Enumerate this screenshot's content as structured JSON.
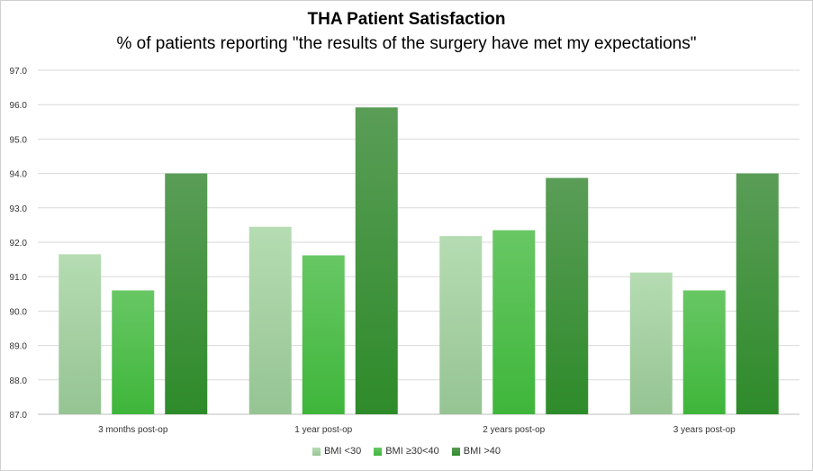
{
  "chart_data": {
    "type": "bar",
    "title": "THA Patient Satisfaction",
    "subtitle": "% of patients reporting \"the results of the surgery have met my expectations\"",
    "categories": [
      "3 months post-op",
      "1 year post-op",
      "2 years post-op",
      "3 years post-op"
    ],
    "series": [
      {
        "name": "BMI <30",
        "values": [
          91.65,
          92.45,
          92.18,
          91.12
        ],
        "color_top": "#b5dcb2",
        "color_bottom": "#96c493"
      },
      {
        "name": "BMI ≥30<40",
        "values": [
          90.6,
          91.62,
          92.35,
          90.6
        ],
        "color_top": "#68c764",
        "color_bottom": "#3eb63a"
      },
      {
        "name": "BMI >40",
        "values": [
          94.0,
          95.92,
          93.87,
          94.0
        ],
        "color_top": "#5a9d57",
        "color_bottom": "#2e8b2a"
      }
    ],
    "ylim": [
      87.0,
      97.0
    ],
    "yticks": [
      "87.0",
      "88.0",
      "89.0",
      "90.0",
      "91.0",
      "92.0",
      "93.0",
      "94.0",
      "95.0",
      "96.0",
      "97.0"
    ],
    "grid": true,
    "legend_position": "bottom"
  }
}
